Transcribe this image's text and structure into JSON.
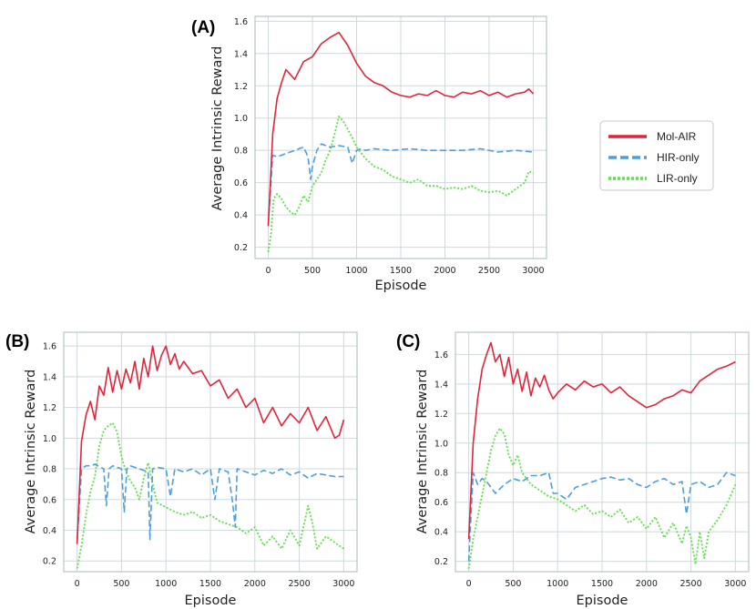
{
  "legend": {
    "entries": [
      {
        "name": "Mol-AIR",
        "color": "#e0243a",
        "dash": "solid"
      },
      {
        "name": "HIR-only",
        "color": "#4d9fd8",
        "dash": "dashed"
      },
      {
        "name": "LIR-only",
        "color": "#5fe04a",
        "dash": "dotted"
      }
    ]
  },
  "chart_data": [
    {
      "panel": "(A)",
      "type": "line",
      "xlabel": "Episode",
      "ylabel": "Average Intrinsic Reward",
      "xlim": [
        -150,
        3150
      ],
      "ylim": [
        0.13,
        1.63
      ],
      "xticks": [
        0,
        500,
        1000,
        1500,
        2000,
        2500,
        3000
      ],
      "yticks": [
        0.2,
        0.4,
        0.6,
        0.8,
        1.0,
        1.2,
        1.4,
        1.6
      ],
      "ytick_labels": [
        "0.2",
        "0.4",
        "0.6",
        "0.8",
        "1.0",
        "1.2",
        "1.4",
        "1.6"
      ],
      "grid": true,
      "series": [
        {
          "name": "Mol-AIR",
          "x": [
            0,
            50,
            100,
            150,
            200,
            300,
            400,
            500,
            600,
            700,
            800,
            850,
            900,
            1000,
            1100,
            1200,
            1300,
            1400,
            1500,
            1600,
            1700,
            1800,
            1900,
            2000,
            2100,
            2200,
            2300,
            2400,
            2500,
            2600,
            2700,
            2800,
            2900,
            2950,
            3000
          ],
          "y": [
            0.33,
            0.9,
            1.12,
            1.22,
            1.3,
            1.24,
            1.35,
            1.38,
            1.46,
            1.5,
            1.53,
            1.49,
            1.45,
            1.34,
            1.26,
            1.22,
            1.2,
            1.16,
            1.14,
            1.13,
            1.15,
            1.14,
            1.17,
            1.14,
            1.13,
            1.16,
            1.15,
            1.17,
            1.14,
            1.16,
            1.13,
            1.15,
            1.16,
            1.18,
            1.15
          ]
        },
        {
          "name": "HIR-only",
          "x": [
            0,
            50,
            100,
            200,
            300,
            400,
            450,
            480,
            500,
            550,
            600,
            700,
            800,
            900,
            950,
            1000,
            1050,
            1100,
            1200,
            1400,
            1600,
            1800,
            2000,
            2200,
            2400,
            2600,
            2800,
            3000
          ],
          "y": [
            0.34,
            0.77,
            0.76,
            0.78,
            0.8,
            0.82,
            0.76,
            0.62,
            0.7,
            0.8,
            0.84,
            0.82,
            0.83,
            0.82,
            0.72,
            0.8,
            0.81,
            0.8,
            0.81,
            0.8,
            0.81,
            0.8,
            0.8,
            0.8,
            0.81,
            0.79,
            0.8,
            0.79
          ]
        },
        {
          "name": "LIR-only",
          "x": [
            0,
            30,
            60,
            100,
            150,
            200,
            250,
            300,
            350,
            400,
            450,
            500,
            550,
            600,
            650,
            700,
            750,
            800,
            850,
            900,
            950,
            1000,
            1100,
            1200,
            1300,
            1400,
            1500,
            1600,
            1700,
            1800,
            1900,
            2000,
            2100,
            2200,
            2300,
            2400,
            2500,
            2600,
            2700,
            2800,
            2900,
            2950,
            3000
          ],
          "y": [
            0.17,
            0.28,
            0.5,
            0.53,
            0.5,
            0.45,
            0.42,
            0.4,
            0.45,
            0.52,
            0.48,
            0.58,
            0.62,
            0.66,
            0.74,
            0.8,
            0.9,
            1.01,
            0.98,
            0.93,
            0.88,
            0.82,
            0.75,
            0.7,
            0.68,
            0.64,
            0.62,
            0.6,
            0.62,
            0.58,
            0.58,
            0.56,
            0.57,
            0.56,
            0.58,
            0.55,
            0.54,
            0.55,
            0.52,
            0.56,
            0.6,
            0.67,
            0.66
          ]
        }
      ]
    },
    {
      "panel": "(B)",
      "type": "line",
      "xlabel": "Episode",
      "ylabel": "Average Intrinsic Reward",
      "xlim": [
        -150,
        3150
      ],
      "ylim": [
        0.13,
        1.69
      ],
      "xticks": [
        0,
        500,
        1000,
        1500,
        2000,
        2500,
        3000
      ],
      "yticks": [
        0.2,
        0.4,
        0.6,
        0.8,
        1.0,
        1.2,
        1.4,
        1.6
      ],
      "ytick_labels": [
        "0.2",
        "0.4",
        "0.6",
        "0.8",
        "1.0",
        "1.2",
        "1.4",
        "1.6"
      ],
      "grid": true,
      "series": [
        {
          "name": "Mol-AIR",
          "x": [
            0,
            50,
            100,
            150,
            200,
            250,
            300,
            350,
            400,
            450,
            500,
            550,
            600,
            650,
            700,
            750,
            800,
            850,
            900,
            950,
            1000,
            1050,
            1100,
            1150,
            1200,
            1300,
            1400,
            1500,
            1600,
            1700,
            1800,
            1900,
            2000,
            2100,
            2200,
            2300,
            2400,
            2500,
            2600,
            2700,
            2800,
            2900,
            2950,
            3000
          ],
          "y": [
            0.31,
            0.98,
            1.15,
            1.24,
            1.12,
            1.34,
            1.28,
            1.46,
            1.3,
            1.44,
            1.32,
            1.45,
            1.36,
            1.5,
            1.32,
            1.52,
            1.4,
            1.6,
            1.44,
            1.54,
            1.6,
            1.48,
            1.55,
            1.45,
            1.5,
            1.42,
            1.44,
            1.34,
            1.38,
            1.26,
            1.32,
            1.2,
            1.26,
            1.1,
            1.2,
            1.08,
            1.16,
            1.1,
            1.2,
            1.05,
            1.14,
            1.0,
            1.02,
            1.12
          ]
        },
        {
          "name": "HIR-only",
          "x": [
            0,
            50,
            100,
            150,
            200,
            300,
            330,
            360,
            400,
            500,
            530,
            560,
            600,
            700,
            800,
            820,
            850,
            900,
            1000,
            1050,
            1100,
            1200,
            1300,
            1400,
            1500,
            1550,
            1600,
            1700,
            1750,
            1780,
            1800,
            1900,
            2000,
            2100,
            2200,
            2300,
            2400,
            2500,
            2600,
            2700,
            2800,
            2900,
            3000
          ],
          "y": [
            0.32,
            0.8,
            0.82,
            0.82,
            0.83,
            0.8,
            0.56,
            0.8,
            0.82,
            0.8,
            0.52,
            0.8,
            0.82,
            0.8,
            0.78,
            0.34,
            0.8,
            0.81,
            0.8,
            0.62,
            0.8,
            0.78,
            0.8,
            0.76,
            0.8,
            0.6,
            0.8,
            0.78,
            0.58,
            0.42,
            0.8,
            0.78,
            0.76,
            0.79,
            0.77,
            0.8,
            0.76,
            0.78,
            0.74,
            0.77,
            0.76,
            0.75,
            0.75
          ]
        },
        {
          "name": "LIR-only",
          "x": [
            0,
            50,
            100,
            150,
            200,
            250,
            300,
            350,
            400,
            450,
            500,
            550,
            600,
            650,
            700,
            750,
            800,
            850,
            900,
            1000,
            1100,
            1200,
            1300,
            1400,
            1500,
            1600,
            1700,
            1800,
            1900,
            2000,
            2100,
            2200,
            2300,
            2400,
            2500,
            2600,
            2650,
            2700,
            2800,
            2900,
            3000
          ],
          "y": [
            0.15,
            0.3,
            0.5,
            0.65,
            0.75,
            0.95,
            1.05,
            1.08,
            1.1,
            1.04,
            0.88,
            0.78,
            0.72,
            0.68,
            0.6,
            0.74,
            0.84,
            0.7,
            0.58,
            0.55,
            0.52,
            0.5,
            0.52,
            0.48,
            0.5,
            0.46,
            0.44,
            0.42,
            0.38,
            0.42,
            0.3,
            0.36,
            0.28,
            0.4,
            0.3,
            0.56,
            0.44,
            0.28,
            0.36,
            0.32,
            0.28
          ]
        }
      ]
    },
    {
      "panel": "(C)",
      "type": "line",
      "xlabel": "Episode",
      "ylabel": "Average Intrinsic Reward",
      "xlim": [
        -150,
        3150
      ],
      "ylim": [
        0.13,
        1.75
      ],
      "xticks": [
        0,
        500,
        1000,
        1500,
        2000,
        2500,
        3000
      ],
      "yticks": [
        0.2,
        0.4,
        0.6,
        0.8,
        1.0,
        1.2,
        1.4,
        1.6
      ],
      "ytick_labels": [
        "0.2",
        "0.4",
        "0.6",
        "0.8",
        "1.0",
        "1.2",
        "1.4",
        "1.6"
      ],
      "grid": true,
      "series": [
        {
          "name": "Mol-AIR",
          "x": [
            0,
            50,
            100,
            150,
            200,
            250,
            300,
            350,
            400,
            450,
            500,
            550,
            600,
            650,
            700,
            750,
            800,
            850,
            900,
            950,
            1000,
            1100,
            1200,
            1300,
            1400,
            1500,
            1600,
            1700,
            1800,
            1900,
            2000,
            2100,
            2200,
            2300,
            2400,
            2500,
            2600,
            2700,
            2800,
            2900,
            3000
          ],
          "y": [
            0.35,
            1.0,
            1.3,
            1.5,
            1.6,
            1.68,
            1.55,
            1.6,
            1.45,
            1.58,
            1.4,
            1.5,
            1.35,
            1.48,
            1.32,
            1.44,
            1.38,
            1.46,
            1.36,
            1.3,
            1.34,
            1.4,
            1.36,
            1.42,
            1.38,
            1.4,
            1.34,
            1.38,
            1.32,
            1.28,
            1.24,
            1.26,
            1.3,
            1.32,
            1.36,
            1.34,
            1.42,
            1.46,
            1.5,
            1.52,
            1.55
          ]
        },
        {
          "name": "HIR-only",
          "x": [
            0,
            50,
            100,
            150,
            200,
            300,
            400,
            500,
            600,
            700,
            800,
            900,
            950,
            1000,
            1100,
            1200,
            1300,
            1400,
            1500,
            1600,
            1700,
            1800,
            1900,
            2000,
            2100,
            2200,
            2300,
            2400,
            2450,
            2500,
            2600,
            2700,
            2800,
            2900,
            3000
          ],
          "y": [
            0.2,
            0.8,
            0.72,
            0.76,
            0.74,
            0.66,
            0.72,
            0.76,
            0.74,
            0.78,
            0.78,
            0.8,
            0.66,
            0.66,
            0.62,
            0.7,
            0.72,
            0.74,
            0.76,
            0.77,
            0.75,
            0.76,
            0.72,
            0.7,
            0.74,
            0.76,
            0.72,
            0.74,
            0.52,
            0.72,
            0.74,
            0.7,
            0.72,
            0.8,
            0.78
          ]
        },
        {
          "name": "LIR-only",
          "x": [
            0,
            50,
            100,
            150,
            200,
            250,
            300,
            350,
            400,
            450,
            500,
            550,
            600,
            650,
            700,
            750,
            800,
            900,
            1000,
            1100,
            1200,
            1300,
            1400,
            1500,
            1600,
            1700,
            1800,
            1900,
            2000,
            2100,
            2200,
            2300,
            2400,
            2450,
            2500,
            2550,
            2600,
            2650,
            2700,
            2800,
            2900,
            3000
          ],
          "y": [
            0.15,
            0.35,
            0.5,
            0.65,
            0.8,
            0.95,
            1.05,
            1.1,
            1.06,
            0.92,
            0.85,
            0.92,
            0.8,
            0.76,
            0.72,
            0.7,
            0.68,
            0.64,
            0.62,
            0.58,
            0.54,
            0.58,
            0.52,
            0.54,
            0.5,
            0.55,
            0.46,
            0.5,
            0.42,
            0.5,
            0.36,
            0.46,
            0.32,
            0.44,
            0.36,
            0.18,
            0.4,
            0.22,
            0.4,
            0.48,
            0.58,
            0.72
          ]
        }
      ]
    }
  ]
}
